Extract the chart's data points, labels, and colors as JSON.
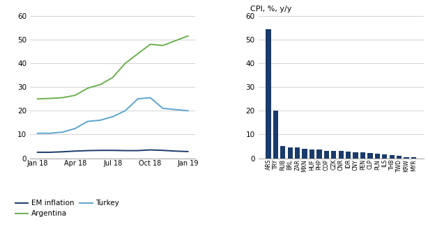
{
  "line_x_labels": [
    "Jan 18",
    "Apr 18",
    "Jul 18",
    "Oct 18",
    "Jan 19"
  ],
  "line_x_ticks": [
    0,
    3,
    6,
    9,
    12
  ],
  "em_inflation": [
    2.5,
    2.5,
    2.7,
    3.0,
    3.2,
    3.3,
    3.3,
    3.2,
    3.2,
    3.5,
    3.3,
    3.0,
    2.8
  ],
  "argentina": [
    25.0,
    25.2,
    25.5,
    26.5,
    29.5,
    31.0,
    34.0,
    40.0,
    44.0,
    48.0,
    47.5,
    49.5,
    51.5
  ],
  "turkey": [
    10.5,
    10.5,
    11.0,
    12.5,
    15.5,
    16.0,
    17.5,
    20.0,
    25.0,
    25.5,
    21.0,
    20.5,
    20.0
  ],
  "em_color": "#1a3a6b",
  "argentina_color": "#6ab04c",
  "turkey_color": "#5ba4cf",
  "line_ylim": [
    0,
    60
  ],
  "line_yticks": [
    0,
    10,
    20,
    30,
    40,
    50,
    60
  ],
  "bar_categories": [
    "ARS",
    "TRY",
    "RUB",
    "BRL",
    "ZAR",
    "MXN",
    "HUF",
    "PHP",
    "COP",
    "CZK",
    "CNR",
    "IDR",
    "CNY",
    "PEN",
    "CLP",
    "PLN",
    "ILS",
    "THB",
    "TWD",
    "KRW",
    "MYR"
  ],
  "bar_values": [
    54.5,
    20.0,
    5.1,
    4.5,
    4.4,
    4.0,
    3.8,
    3.6,
    3.2,
    3.1,
    3.0,
    2.8,
    2.6,
    2.4,
    2.2,
    1.8,
    1.5,
    1.2,
    0.9,
    0.5,
    0.3
  ],
  "bar_color": "#1a3a6b",
  "bar_ylim": [
    0,
    60
  ],
  "bar_yticks": [
    0,
    10,
    20,
    30,
    40,
    50,
    60
  ],
  "bar_title": "CPI, %, y/y",
  "background_color": "#ffffff",
  "grid_color": "#cccccc",
  "legend_items": [
    "EM inflation",
    "Argentina",
    "Turkey"
  ]
}
